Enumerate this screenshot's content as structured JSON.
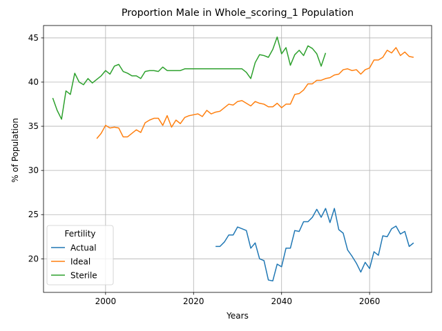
{
  "chart_data": {
    "type": "line",
    "title": "Proportion Male in Whole_scoring_1 Population",
    "xlabel": "Years",
    "ylabel": "% of Population",
    "xlim": [
      1985.9,
      2074.1
    ],
    "ylim": [
      16.2,
      46.4
    ],
    "x_ticks": [
      2000,
      2020,
      2040,
      2060
    ],
    "y_ticks": [
      20,
      25,
      30,
      35,
      40,
      45
    ],
    "grid": true,
    "legend": {
      "title": "Fertility",
      "placement": "lower-left"
    },
    "series": [
      {
        "name": "Actual",
        "color": "#1f77b4",
        "points": [
          [
            2025,
            21.4
          ],
          [
            2026,
            21.4
          ],
          [
            2027,
            21.9
          ],
          [
            2028,
            22.7
          ],
          [
            2029,
            22.7
          ],
          [
            2030,
            23.6
          ],
          [
            2031,
            23.4
          ],
          [
            2032,
            23.2
          ],
          [
            2033,
            21.2
          ],
          [
            2034,
            21.8
          ],
          [
            2035,
            20.0
          ],
          [
            2036,
            19.8
          ],
          [
            2037,
            17.6
          ],
          [
            2038,
            17.5
          ],
          [
            2039,
            19.4
          ],
          [
            2040,
            19.1
          ],
          [
            2041,
            21.2
          ],
          [
            2042,
            21.2
          ],
          [
            2043,
            23.2
          ],
          [
            2044,
            23.1
          ],
          [
            2045,
            24.2
          ],
          [
            2046,
            24.2
          ],
          [
            2047,
            24.7
          ],
          [
            2048,
            25.6
          ],
          [
            2049,
            24.7
          ],
          [
            2050,
            25.7
          ],
          [
            2051,
            24.1
          ],
          [
            2052,
            25.7
          ],
          [
            2053,
            23.3
          ],
          [
            2054,
            22.9
          ],
          [
            2055,
            21.0
          ],
          [
            2056,
            20.3
          ],
          [
            2057,
            19.5
          ],
          [
            2058,
            18.5
          ],
          [
            2059,
            19.6
          ],
          [
            2060,
            18.9
          ],
          [
            2061,
            20.8
          ],
          [
            2062,
            20.4
          ],
          [
            2063,
            22.6
          ],
          [
            2064,
            22.5
          ],
          [
            2065,
            23.4
          ],
          [
            2066,
            23.7
          ],
          [
            2067,
            22.8
          ],
          [
            2068,
            23.1
          ],
          [
            2069,
            21.4
          ],
          [
            2070,
            21.8
          ]
        ]
      },
      {
        "name": "Ideal",
        "color": "#ff7f0e",
        "points": [
          [
            1998,
            33.6
          ],
          [
            1999,
            34.2
          ],
          [
            2000,
            35.1
          ],
          [
            2001,
            34.8
          ],
          [
            2002,
            34.9
          ],
          [
            2003,
            34.8
          ],
          [
            2004,
            33.8
          ],
          [
            2005,
            33.8
          ],
          [
            2006,
            34.2
          ],
          [
            2007,
            34.6
          ],
          [
            2008,
            34.3
          ],
          [
            2009,
            35.4
          ],
          [
            2010,
            35.7
          ],
          [
            2011,
            35.9
          ],
          [
            2012,
            35.9
          ],
          [
            2013,
            35.1
          ],
          [
            2014,
            36.2
          ],
          [
            2015,
            34.9
          ],
          [
            2016,
            35.7
          ],
          [
            2017,
            35.3
          ],
          [
            2018,
            36.0
          ],
          [
            2019,
            36.2
          ],
          [
            2020,
            36.3
          ],
          [
            2021,
            36.4
          ],
          [
            2022,
            36.1
          ],
          [
            2023,
            36.8
          ],
          [
            2024,
            36.4
          ],
          [
            2025,
            36.6
          ],
          [
            2026,
            36.7
          ],
          [
            2027,
            37.1
          ],
          [
            2028,
            37.5
          ],
          [
            2029,
            37.4
          ],
          [
            2030,
            37.8
          ],
          [
            2031,
            37.9
          ],
          [
            2032,
            37.6
          ],
          [
            2033,
            37.3
          ],
          [
            2034,
            37.8
          ],
          [
            2035,
            37.6
          ],
          [
            2036,
            37.5
          ],
          [
            2037,
            37.2
          ],
          [
            2038,
            37.2
          ],
          [
            2039,
            37.6
          ],
          [
            2040,
            37.1
          ],
          [
            2041,
            37.5
          ],
          [
            2042,
            37.5
          ],
          [
            2043,
            38.6
          ],
          [
            2044,
            38.7
          ],
          [
            2045,
            39.1
          ],
          [
            2046,
            39.8
          ],
          [
            2047,
            39.8
          ],
          [
            2048,
            40.2
          ],
          [
            2049,
            40.2
          ],
          [
            2050,
            40.4
          ],
          [
            2051,
            40.5
          ],
          [
            2052,
            40.8
          ],
          [
            2053,
            40.9
          ],
          [
            2054,
            41.4
          ],
          [
            2055,
            41.5
          ],
          [
            2056,
            41.3
          ],
          [
            2057,
            41.4
          ],
          [
            2058,
            40.9
          ],
          [
            2059,
            41.4
          ],
          [
            2060,
            41.6
          ],
          [
            2061,
            42.5
          ],
          [
            2062,
            42.5
          ],
          [
            2063,
            42.8
          ],
          [
            2064,
            43.6
          ],
          [
            2065,
            43.3
          ],
          [
            2066,
            43.9
          ],
          [
            2067,
            43.0
          ],
          [
            2068,
            43.4
          ],
          [
            2069,
            42.9
          ],
          [
            2070,
            42.8
          ]
        ]
      },
      {
        "name": "Sterile",
        "color": "#2ca02c",
        "points": [
          [
            1988,
            38.2
          ],
          [
            1989,
            36.8
          ],
          [
            1990,
            35.8
          ],
          [
            1991,
            39.0
          ],
          [
            1992,
            38.6
          ],
          [
            1993,
            41.0
          ],
          [
            1994,
            40.0
          ],
          [
            1995,
            39.7
          ],
          [
            1996,
            40.4
          ],
          [
            1997,
            39.9
          ],
          [
            1998,
            40.3
          ],
          [
            1999,
            40.7
          ],
          [
            2000,
            41.3
          ],
          [
            2001,
            40.9
          ],
          [
            2002,
            41.8
          ],
          [
            2003,
            42.0
          ],
          [
            2004,
            41.2
          ],
          [
            2005,
            41.0
          ],
          [
            2006,
            40.7
          ],
          [
            2007,
            40.7
          ],
          [
            2008,
            40.4
          ],
          [
            2009,
            41.2
          ],
          [
            2010,
            41.3
          ],
          [
            2011,
            41.3
          ],
          [
            2012,
            41.2
          ],
          [
            2013,
            41.7
          ],
          [
            2014,
            41.3
          ],
          [
            2015,
            41.3
          ],
          [
            2016,
            41.3
          ],
          [
            2017,
            41.3
          ],
          [
            2018,
            41.5
          ],
          [
            2019,
            41.5
          ],
          [
            2020,
            41.5
          ],
          [
            2021,
            41.5
          ],
          [
            2022,
            41.5
          ],
          [
            2023,
            41.5
          ],
          [
            2024,
            41.5
          ],
          [
            2025,
            41.5
          ],
          [
            2026,
            41.5
          ],
          [
            2027,
            41.5
          ],
          [
            2028,
            41.5
          ],
          [
            2029,
            41.5
          ],
          [
            2030,
            41.5
          ],
          [
            2031,
            41.5
          ],
          [
            2032,
            41.1
          ],
          [
            2033,
            40.4
          ],
          [
            2034,
            42.2
          ],
          [
            2035,
            43.1
          ],
          [
            2036,
            43.0
          ],
          [
            2037,
            42.8
          ],
          [
            2038,
            43.7
          ],
          [
            2039,
            45.1
          ],
          [
            2040,
            43.2
          ],
          [
            2041,
            43.9
          ],
          [
            2042,
            41.9
          ],
          [
            2043,
            43.1
          ],
          [
            2044,
            43.6
          ],
          [
            2045,
            43.0
          ],
          [
            2046,
            44.1
          ],
          [
            2047,
            43.8
          ],
          [
            2048,
            43.2
          ],
          [
            2049,
            41.8
          ],
          [
            2050,
            43.3
          ]
        ]
      }
    ]
  }
}
